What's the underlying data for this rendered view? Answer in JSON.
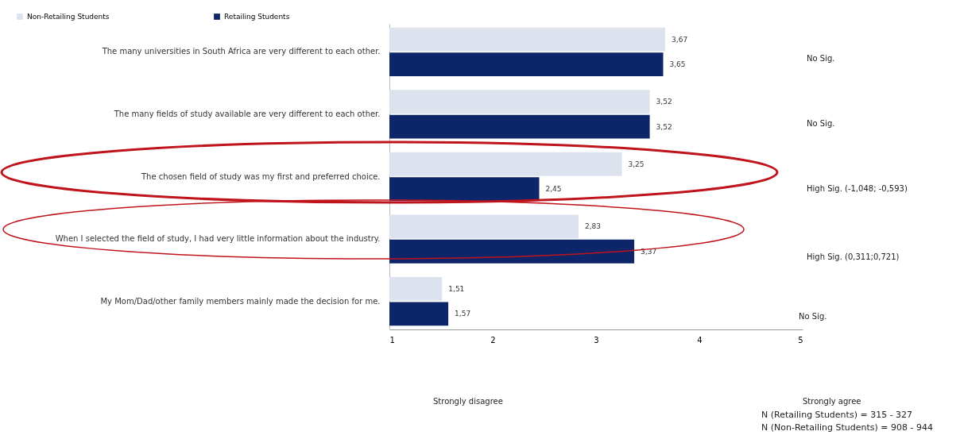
{
  "chart_data": {
    "type": "bar",
    "orientation": "horizontal",
    "categories": [
      "The many universities in South Africa are very different to each other.",
      "The many fields of study available are very different to each other.",
      "The chosen field of study was my first and preferred choice.",
      "When I selected the field of study, I had very little information about the industry.",
      "My Mom/Dad/other family members mainly made the decision for me."
    ],
    "series": [
      {
        "name": "Non-Retailing Students",
        "color": "#dce3ef",
        "values": [
          3.67,
          3.52,
          3.25,
          2.83,
          1.51
        ],
        "value_labels": [
          "3,67",
          "3,52",
          "3,25",
          "2,83",
          "1,51"
        ]
      },
      {
        "name": "Retailing Students",
        "color": "#0d2569",
        "values": [
          3.65,
          3.52,
          2.45,
          3.37,
          1.57
        ],
        "value_labels": [
          "3,65",
          "3,52",
          "2,45",
          "3,37",
          "1,57"
        ]
      }
    ],
    "xlim": [
      1,
      5
    ],
    "xticks": [
      1,
      2,
      3,
      4,
      5
    ],
    "grid": false,
    "legend": "top left",
    "annotations": [
      "No Sig.",
      "No Sig.",
      "High Sig. (-1,048; -0,593)",
      "High Sig. (0,311;0,721)",
      "No Sig.",
      "Strongly disagree",
      "Strongly agree",
      "N (Retailing Students) = 315 - 327",
      "N (Non-Retailing Students) = 908 - 944"
    ]
  }
}
